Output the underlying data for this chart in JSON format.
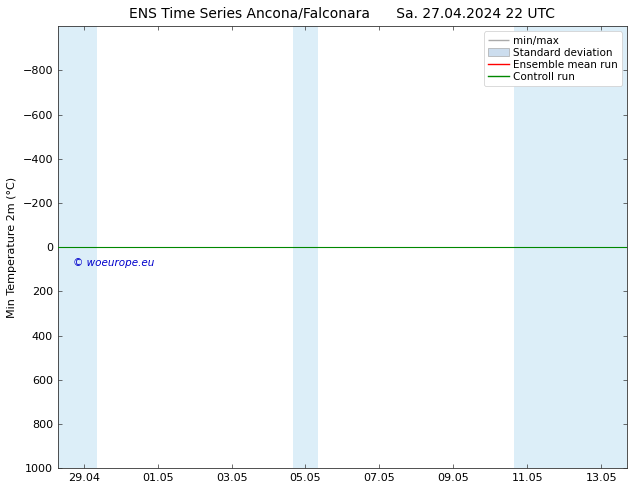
{
  "title_left": "ENS Time Series Ancona/Falconara",
  "title_right": "Sa. 27.04.2024 22 UTC",
  "ylabel": "Min Temperature 2m (°C)",
  "ylim": [
    1000,
    -1000
  ],
  "yticks": [
    -800,
    -600,
    -400,
    -200,
    0,
    200,
    400,
    600,
    800,
    1000
  ],
  "x_dates": [
    "29.04",
    "01.05",
    "03.05",
    "05.05",
    "07.05",
    "09.05",
    "11.05",
    "13.05"
  ],
  "x_values": [
    0,
    2,
    4,
    6,
    8,
    10,
    12,
    14
  ],
  "xlim": [
    -0.7,
    14.7
  ],
  "shaded_regions": [
    {
      "xmin": -0.7,
      "xmax": 0.35
    },
    {
      "xmin": 5.65,
      "xmax": 6.35
    },
    {
      "xmin": 11.65,
      "xmax": 14.7
    }
  ],
  "shaded_color": "#dceef8",
  "control_run_y": 0,
  "ensemble_mean_y": 0,
  "control_run_color": "#008800",
  "ensemble_mean_color": "#ff0000",
  "copyright_text": "© woeurope.eu",
  "copyright_color": "#0000cc",
  "background_color": "#ffffff",
  "plot_bg_color": "#ffffff",
  "legend_items": [
    "min/max",
    "Standard deviation",
    "Ensemble mean run",
    "Controll run"
  ],
  "legend_line_color": "#aaaaaa",
  "legend_std_color": "#ccddee",
  "legend_mean_color": "#ff0000",
  "legend_ctrl_color": "#008800",
  "title_fontsize": 10,
  "axis_label_fontsize": 8,
  "tick_fontsize": 8,
  "legend_fontsize": 7.5
}
